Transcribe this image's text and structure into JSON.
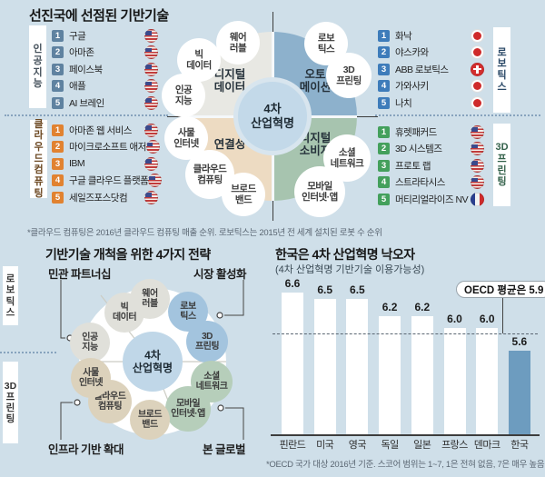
{
  "colors": {
    "background": "#cfdfe9",
    "ai_rank_badge": "#5f82a0",
    "cloud_rank_badge": "#e18230",
    "robotics_rank_badge": "#3e7cba",
    "printing_rank_badge": "#44a05c",
    "quadrant_digital_data": "#e8e8e3",
    "quadrant_automation": "#8db1cc",
    "quadrant_connectivity": "#eddbc2",
    "quadrant_digital_consumer": "#a7c4af",
    "wheel_center_circle": "#c3d9e9",
    "korea_highlight_bar": "#6d9cbf"
  },
  "top": {
    "title": "선진국에 선점된 기반기술",
    "footnote": "*클라우드 컴퓨팅은 2016년 클라우드 컴퓨팅 매출 순위. 로보틱스는 2015년 전 세계 설치된 로봇 수 순위",
    "ai": {
      "label": "인공지능",
      "items": [
        {
          "rank": "1",
          "name": "구글",
          "flag": "us"
        },
        {
          "rank": "2",
          "name": "아마존",
          "flag": "us"
        },
        {
          "rank": "3",
          "name": "페이스북",
          "flag": "us"
        },
        {
          "rank": "4",
          "name": "애플",
          "flag": "us"
        },
        {
          "rank": "5",
          "name": "AI 브레인",
          "flag": "us"
        }
      ]
    },
    "cloud": {
      "label": "클라우드컴퓨팅",
      "items": [
        {
          "rank": "1",
          "name": "아마존 웹 서비스",
          "flag": "us"
        },
        {
          "rank": "2",
          "name": "마이크로소프트 애저",
          "flag": "us"
        },
        {
          "rank": "3",
          "name": "IBM",
          "flag": "us"
        },
        {
          "rank": "4",
          "name": "구글 클라우드 플랫폼",
          "flag": "us"
        },
        {
          "rank": "5",
          "name": "세일즈포스닷컴",
          "flag": "us"
        }
      ]
    },
    "robotics": {
      "label": "로보틱스",
      "items": [
        {
          "rank": "1",
          "name": "화낙",
          "flag": "jp"
        },
        {
          "rank": "2",
          "name": "야스카와",
          "flag": "jp"
        },
        {
          "rank": "3",
          "name": "ABB 로보틱스",
          "flag": "ch"
        },
        {
          "rank": "4",
          "name": "가와사키",
          "flag": "jp"
        },
        {
          "rank": "5",
          "name": "나치",
          "flag": "jp"
        }
      ]
    },
    "printing": {
      "label": "3D프린팅",
      "items": [
        {
          "rank": "1",
          "name": "휴렛패커드",
          "flag": "us"
        },
        {
          "rank": "2",
          "name": "3D 시스템즈",
          "flag": "us"
        },
        {
          "rank": "3",
          "name": "프로토 랩",
          "flag": "us"
        },
        {
          "rank": "4",
          "name": "스트라타시스",
          "flag": "us"
        },
        {
          "rank": "5",
          "name": "머티리얼라이즈 NV",
          "flag": "fr"
        }
      ]
    },
    "wheel": {
      "center": "4차\n산업혁명",
      "quadrants": {
        "digital_data": "디지털\n데이터",
        "automation": "오토\n메이션",
        "connectivity": "연결성",
        "digital_consumer": "디지털\n소비자"
      },
      "bubbles": {
        "wearable": "웨어\n러블",
        "big_data": "빅\n데이터",
        "ai": "인공\n지능",
        "robotics": "로보\n틱스",
        "printing_3d": "3D\n프린팅",
        "iot": "사물\n인터넷",
        "cloud": "클라우드\n컴퓨팅",
        "broadband": "브로드\n밴드",
        "mobile": "모바일\n인터넷·앱",
        "social": "소셜\n네트워크"
      }
    }
  },
  "strategy": {
    "title": "기반기술 개척을 위한 4가지 전략",
    "sidebar": {
      "robotics": "로보틱스",
      "printing": "3D프린팅"
    },
    "labels": {
      "top_left": "민관 파트너십",
      "top_right": "시장 활성화",
      "bottom_left": "인프라 기반 확대",
      "bottom_right": "본 글로벌"
    },
    "center": "4차\n산업혁명",
    "bubbles": {
      "wearable": "웨어\n러블",
      "big_data": "빅\n데이터",
      "ai": "인공\n지능",
      "robotics": "로보\n틱스",
      "printing_3d": "3D\n프린팅",
      "iot": "사물\n인터넷",
      "cloud": "클라우드\n컴퓨팅",
      "broadband": "브로드\n밴드",
      "mobile": "모바일\n인터넷·앱",
      "social": "소셜\n네트워크"
    }
  },
  "chart_data": {
    "type": "bar",
    "title": "한국은 4차 산업혁명 낙오자",
    "subtitle": "(4차 산업혁명 기반기술 이용가능성)",
    "annotation": "OECD 평균은 5.9",
    "footnote": "*OECD 국가 대상 2016년 기준. 스코어 범위는 1~7, 1은 전혀 없음, 7은 매우 높음.",
    "categories": [
      "핀란드",
      "미국",
      "영국",
      "독일",
      "일본",
      "프랑스",
      "덴마크",
      "한국"
    ],
    "values": [
      6.6,
      6.5,
      6.5,
      6.2,
      6.2,
      6.0,
      6.0,
      5.6
    ],
    "highlight_category": "한국",
    "reference_line": 5.9,
    "score_range": [
      1,
      7
    ],
    "value_labels": true,
    "legend": "none"
  }
}
